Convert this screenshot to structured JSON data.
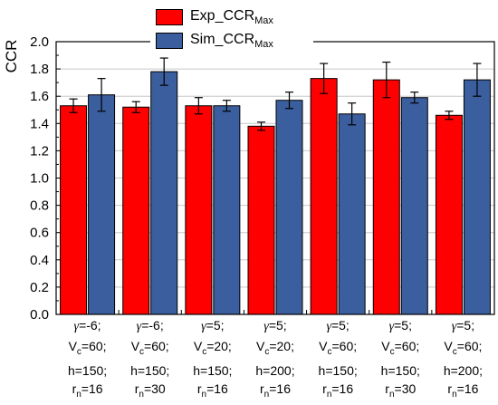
{
  "chart_data": {
    "type": "bar",
    "title": "",
    "xlabel": "",
    "ylabel": "CCR",
    "ylim": [
      0,
      2.0
    ],
    "yticks": [
      "0.0",
      "0.2",
      "0.4",
      "0.6",
      "0.8",
      "1.0",
      "1.2",
      "1.4",
      "1.6",
      "1.8",
      "2.0"
    ],
    "grid": true,
    "legend_position": "top-center",
    "categories": [
      [
        [
          {
            "t": "γ",
            "g": true
          },
          {
            "t": "=-6;"
          }
        ],
        [
          {
            "t": "V"
          },
          {
            "t": "c",
            "sub": true
          },
          {
            "t": "=60;"
          }
        ],
        [
          {
            "t": "h=150;"
          }
        ],
        [
          {
            "t": "r"
          },
          {
            "t": "n",
            "sub": true
          },
          {
            "t": "=16"
          }
        ]
      ],
      [
        [
          {
            "t": "γ",
            "g": true
          },
          {
            "t": "=-6;"
          }
        ],
        [
          {
            "t": "V"
          },
          {
            "t": "c",
            "sub": true
          },
          {
            "t": "=60;"
          }
        ],
        [
          {
            "t": "h=150;"
          }
        ],
        [
          {
            "t": "r"
          },
          {
            "t": "n",
            "sub": true
          },
          {
            "t": "=30"
          }
        ]
      ],
      [
        [
          {
            "t": "γ",
            "g": true
          },
          {
            "t": "=5;"
          }
        ],
        [
          {
            "t": "V"
          },
          {
            "t": "c",
            "sub": true
          },
          {
            "t": "=20;"
          }
        ],
        [
          {
            "t": "h=150;"
          }
        ],
        [
          {
            "t": "r"
          },
          {
            "t": "n",
            "sub": true
          },
          {
            "t": "=16"
          }
        ]
      ],
      [
        [
          {
            "t": "γ",
            "g": true
          },
          {
            "t": "=5;"
          }
        ],
        [
          {
            "t": "V"
          },
          {
            "t": "c",
            "sub": true
          },
          {
            "t": "=20;"
          }
        ],
        [
          {
            "t": "h=200;"
          }
        ],
        [
          {
            "t": "r"
          },
          {
            "t": "n",
            "sub": true
          },
          {
            "t": "=16"
          }
        ]
      ],
      [
        [
          {
            "t": "γ",
            "g": true
          },
          {
            "t": "=5;"
          }
        ],
        [
          {
            "t": "V"
          },
          {
            "t": "c",
            "sub": true
          },
          {
            "t": "=60;"
          }
        ],
        [
          {
            "t": "h=150;"
          }
        ],
        [
          {
            "t": "r"
          },
          {
            "t": "n",
            "sub": true
          },
          {
            "t": "=16"
          }
        ]
      ],
      [
        [
          {
            "t": "γ",
            "g": true
          },
          {
            "t": "=5;"
          }
        ],
        [
          {
            "t": "V"
          },
          {
            "t": "c",
            "sub": true
          },
          {
            "t": "=60;"
          }
        ],
        [
          {
            "t": "h=150;"
          }
        ],
        [
          {
            "t": "r"
          },
          {
            "t": "n",
            "sub": true
          },
          {
            "t": "=30"
          }
        ]
      ],
      [
        [
          {
            "t": "γ",
            "g": true
          },
          {
            "t": "=5;"
          }
        ],
        [
          {
            "t": "V"
          },
          {
            "t": "c",
            "sub": true
          },
          {
            "t": "=60;"
          }
        ],
        [
          {
            "t": "h=200;"
          }
        ],
        [
          {
            "t": "r"
          },
          {
            "t": "n",
            "sub": true
          },
          {
            "t": "=16"
          }
        ]
      ]
    ],
    "series": [
      {
        "name": "Exp_CCR",
        "name_sub": "Max",
        "color": "#ff0000",
        "values": [
          1.53,
          1.52,
          1.53,
          1.38,
          1.73,
          1.72,
          1.46
        ],
        "errors": [
          0.05,
          0.04,
          0.06,
          0.03,
          0.11,
          0.13,
          0.03
        ]
      },
      {
        "name": "Sim_CCR",
        "name_sub": "Max",
        "color": "#3b5e9e",
        "values": [
          1.61,
          1.78,
          1.53,
          1.57,
          1.47,
          1.59,
          1.72
        ],
        "errors": [
          0.12,
          0.1,
          0.04,
          0.06,
          0.08,
          0.04,
          0.12
        ]
      }
    ]
  }
}
